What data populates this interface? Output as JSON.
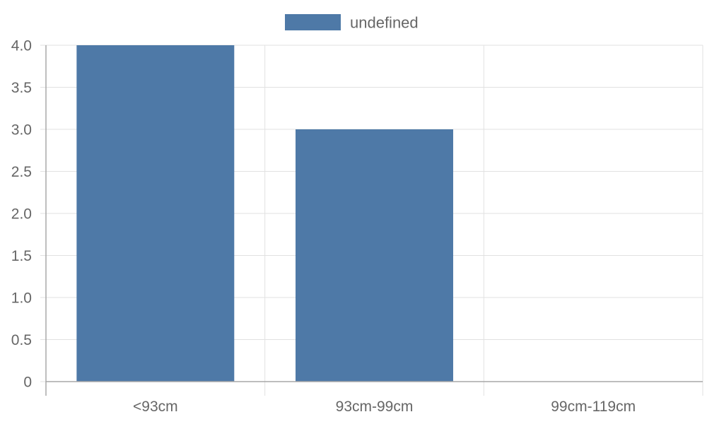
{
  "chart_data": {
    "type": "bar",
    "categories": [
      "<93cm",
      "93cm-99cm",
      "99cm-119cm"
    ],
    "series": [
      {
        "name": "undefined",
        "values": [
          4,
          3,
          0
        ]
      }
    ],
    "yticks": [
      "0",
      "0.5",
      "1.0",
      "1.5",
      "2.0",
      "2.5",
      "3.0",
      "3.5",
      "4.0"
    ],
    "ylim": [
      0,
      4
    ],
    "title": "",
    "xlabel": "",
    "ylabel": "",
    "grid": true,
    "legend_position": "top",
    "colors": {
      "bar": "#4e79a7",
      "grid": "#e1e1e1",
      "axis": "#a8a8a8",
      "text": "#666666"
    }
  }
}
